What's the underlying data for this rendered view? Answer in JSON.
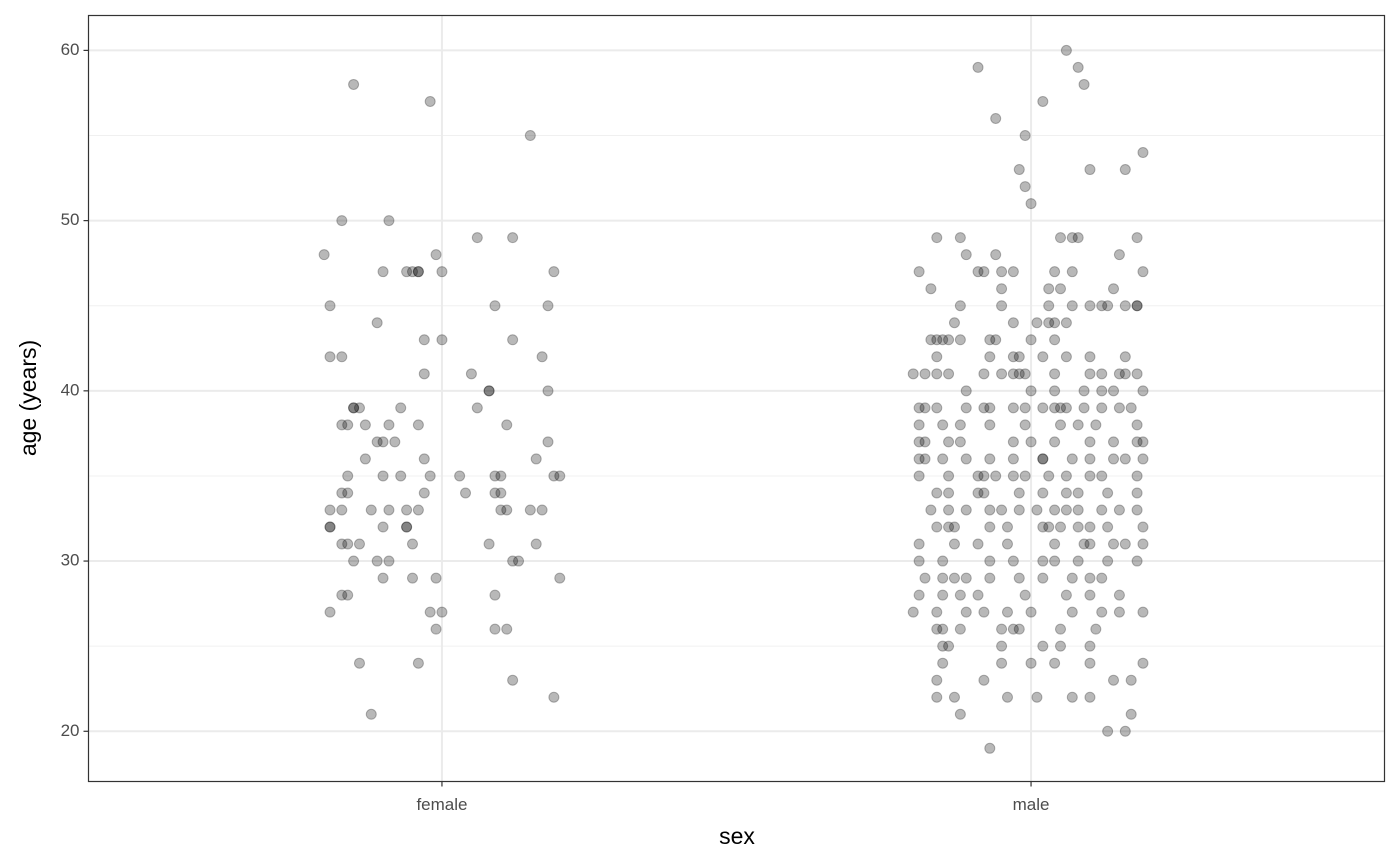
{
  "chart_data": {
    "type": "scatter",
    "x_label": "sex",
    "y_label": "age (years)",
    "xlim": [
      0.4,
      2.6
    ],
    "xticks": [
      {
        "value": 1,
        "label": "female"
      },
      {
        "value": 2,
        "label": "male"
      }
    ],
    "ylim": [
      17.05,
      62.05
    ],
    "yticks": [
      20,
      30,
      40,
      50,
      60
    ],
    "minor_yticks": [
      25,
      35,
      45,
      55
    ],
    "grid": true,
    "color": "#000000",
    "alpha": 0.28,
    "x": [
      0.85,
      0.98,
      1.15,
      0.83,
      0.91,
      0.8,
      0.99,
      1.06,
      1.12,
      0.9,
      0.94,
      0.95,
      0.96,
      0.96,
      1.0,
      1.19,
      0.81,
      1.09,
      1.18,
      0.89,
      0.97,
      1.0,
      1.12,
      0.81,
      0.83,
      1.17,
      0.97,
      1.05,
      0.85,
      0.85,
      0.86,
      0.93,
      1.06,
      1.08,
      1.08,
      1.18,
      0.83,
      0.84,
      0.87,
      0.91,
      0.96,
      1.11,
      0.89,
      0.9,
      0.92,
      1.18,
      0.87,
      0.97,
      1.16,
      0.84,
      0.9,
      0.93,
      0.98,
      1.03,
      1.09,
      1.1,
      1.19,
      1.2,
      0.83,
      0.84,
      0.97,
      1.04,
      1.09,
      1.1,
      0.81,
      0.83,
      0.88,
      0.91,
      0.94,
      0.96,
      1.1,
      1.11,
      1.15,
      1.17,
      0.81,
      0.81,
      0.9,
      0.94,
      0.94,
      0.83,
      0.84,
      0.86,
      0.95,
      1.08,
      1.16,
      0.85,
      0.89,
      0.91,
      1.12,
      1.13,
      0.9,
      0.95,
      0.99,
      1.2,
      0.83,
      0.84,
      1.09,
      0.81,
      0.98,
      1.0,
      0.99,
      1.09,
      1.11,
      0.86,
      0.96,
      1.12,
      1.19,
      0.88,
      2.06,
      1.91,
      2.08,
      2.09,
      2.02,
      1.94,
      1.99,
      2.19,
      1.98,
      2.1,
      2.16,
      1.99,
      2.0,
      1.84,
      1.88,
      2.05,
      2.07,
      2.08,
      2.18,
      1.89,
      1.94,
      2.15,
      1.81,
      1.91,
      1.92,
      1.95,
      1.97,
      2.04,
      2.07,
      2.19,
      1.83,
      1.95,
      2.03,
      2.05,
      2.14,
      1.88,
      1.95,
      2.03,
      2.07,
      2.1,
      2.12,
      2.13,
      2.16,
      2.18,
      2.18,
      1.87,
      1.97,
      2.01,
      2.03,
      2.04,
      2.06,
      1.83,
      1.84,
      1.85,
      1.86,
      1.88,
      1.93,
      1.94,
      2.0,
      2.04,
      1.84,
      1.93,
      1.97,
      1.98,
      2.02,
      2.06,
      2.1,
      2.16,
      1.8,
      1.82,
      1.84,
      1.86,
      1.92,
      1.95,
      1.97,
      1.98,
      1.99,
      2.04,
      2.1,
      2.12,
      2.15,
      2.16,
      2.18,
      1.89,
      2.0,
      2.04,
      2.09,
      2.12,
      2.14,
      2.19,
      1.81,
      1.82,
      1.84,
      1.89,
      1.92,
      1.93,
      1.97,
      1.99,
      2.02,
      2.04,
      2.05,
      2.06,
      2.09,
      2.12,
      2.15,
      2.17,
      1.81,
      1.85,
      1.88,
      1.93,
      1.99,
      2.05,
      2.08,
      2.11,
      2.18,
      1.81,
      1.82,
      1.86,
      1.88,
      1.97,
      2.0,
      2.04,
      2.1,
      2.14,
      2.18,
      2.19,
      1.81,
      1.82,
      1.85,
      1.89,
      1.93,
      1.97,
      2.02,
      2.02,
      2.07,
      2.1,
      2.14,
      2.16,
      2.19,
      1.81,
      1.86,
      1.91,
      1.92,
      1.94,
      1.97,
      1.99,
      2.03,
      2.06,
      2.1,
      2.12,
      2.18,
      1.84,
      1.86,
      1.91,
      1.92,
      1.98,
      2.02,
      2.06,
      2.08,
      2.13,
      2.18,
      1.83,
      1.86,
      1.89,
      1.93,
      1.95,
      1.98,
      2.01,
      2.04,
      2.06,
      2.08,
      2.12,
      2.15,
      2.18,
      1.84,
      1.86,
      1.87,
      1.93,
      1.96,
      2.02,
      2.03,
      2.05,
      2.08,
      2.1,
      2.13,
      2.19,
      1.81,
      1.87,
      1.91,
      1.96,
      2.04,
      2.09,
      2.1,
      2.14,
      2.16,
      2.19,
      1.81,
      1.85,
      1.93,
      1.97,
      2.02,
      2.04,
      2.08,
      2.13,
      2.18,
      1.82,
      1.85,
      1.87,
      1.89,
      1.93,
      1.98,
      2.02,
      2.07,
      2.1,
      2.12,
      1.81,
      1.85,
      1.88,
      1.91,
      1.99,
      2.06,
      2.1,
      2.15,
      1.8,
      1.84,
      1.89,
      1.92,
      1.96,
      2.0,
      2.07,
      2.12,
      2.15,
      2.19,
      1.84,
      1.85,
      1.88,
      1.95,
      1.97,
      1.98,
      2.05,
      2.11,
      1.85,
      1.86,
      1.95,
      2.02,
      2.05,
      2.1,
      1.85,
      1.95,
      2.0,
      2.04,
      2.1,
      2.19,
      1.84,
      1.92,
      2.14,
      2.17,
      1.84,
      1.87,
      1.96,
      2.01,
      2.07,
      2.1,
      1.88,
      2.17,
      2.13,
      2.16,
      1.93
    ],
    "values": [
      58,
      57,
      55,
      50,
      50,
      48,
      48,
      49,
      49,
      47,
      47,
      47,
      47,
      47,
      47,
      47,
      45,
      45,
      45,
      44,
      43,
      43,
      43,
      42,
      42,
      42,
      41,
      41,
      39,
      39,
      39,
      39,
      39,
      40,
      40,
      40,
      38,
      38,
      38,
      38,
      38,
      38,
      37,
      37,
      37,
      37,
      36,
      36,
      36,
      35,
      35,
      35,
      35,
      35,
      35,
      35,
      35,
      35,
      34,
      34,
      34,
      34,
      34,
      34,
      33,
      33,
      33,
      33,
      33,
      33,
      33,
      33,
      33,
      33,
      32,
      32,
      32,
      32,
      32,
      31,
      31,
      31,
      31,
      31,
      31,
      30,
      30,
      30,
      30,
      30,
      29,
      29,
      29,
      29,
      28,
      28,
      28,
      27,
      27,
      27,
      26,
      26,
      26,
      24,
      24,
      23,
      22,
      21,
      60,
      59,
      59,
      58,
      57,
      56,
      55,
      54,
      53,
      53,
      53,
      52,
      51,
      49,
      49,
      49,
      49,
      49,
      49,
      48,
      48,
      48,
      47,
      47,
      47,
      47,
      47,
      47,
      47,
      47,
      46,
      46,
      46,
      46,
      46,
      45,
      45,
      45,
      45,
      45,
      45,
      45,
      45,
      45,
      45,
      44,
      44,
      44,
      44,
      44,
      44,
      43,
      43,
      43,
      43,
      43,
      43,
      43,
      43,
      43,
      42,
      42,
      42,
      42,
      42,
      42,
      42,
      42,
      41,
      41,
      41,
      41,
      41,
      41,
      41,
      41,
      41,
      41,
      41,
      41,
      41,
      41,
      41,
      40,
      40,
      40,
      40,
      40,
      40,
      40,
      39,
      39,
      39,
      39,
      39,
      39,
      39,
      39,
      39,
      39,
      39,
      39,
      39,
      39,
      39,
      39,
      38,
      38,
      38,
      38,
      38,
      38,
      38,
      38,
      38,
      37,
      37,
      37,
      37,
      37,
      37,
      37,
      37,
      37,
      37,
      37,
      36,
      36,
      36,
      36,
      36,
      36,
      36,
      36,
      36,
      36,
      36,
      36,
      36,
      35,
      35,
      35,
      35,
      35,
      35,
      35,
      35,
      35,
      35,
      35,
      35,
      34,
      34,
      34,
      34,
      34,
      34,
      34,
      34,
      34,
      34,
      33,
      33,
      33,
      33,
      33,
      33,
      33,
      33,
      33,
      33,
      33,
      33,
      33,
      32,
      32,
      32,
      32,
      32,
      32,
      32,
      32,
      32,
      32,
      32,
      32,
      31,
      31,
      31,
      31,
      31,
      31,
      31,
      31,
      31,
      31,
      30,
      30,
      30,
      30,
      30,
      30,
      30,
      30,
      30,
      29,
      29,
      29,
      29,
      29,
      29,
      29,
      29,
      29,
      29,
      28,
      28,
      28,
      28,
      28,
      28,
      28,
      28,
      27,
      27,
      27,
      27,
      27,
      27,
      27,
      27,
      27,
      27,
      26,
      26,
      26,
      26,
      26,
      26,
      26,
      26,
      25,
      25,
      25,
      25,
      25,
      25,
      24,
      24,
      24,
      24,
      24,
      24,
      23,
      23,
      23,
      23,
      22,
      22,
      22,
      22,
      22,
      22,
      21,
      21,
      20,
      20,
      19
    ]
  }
}
